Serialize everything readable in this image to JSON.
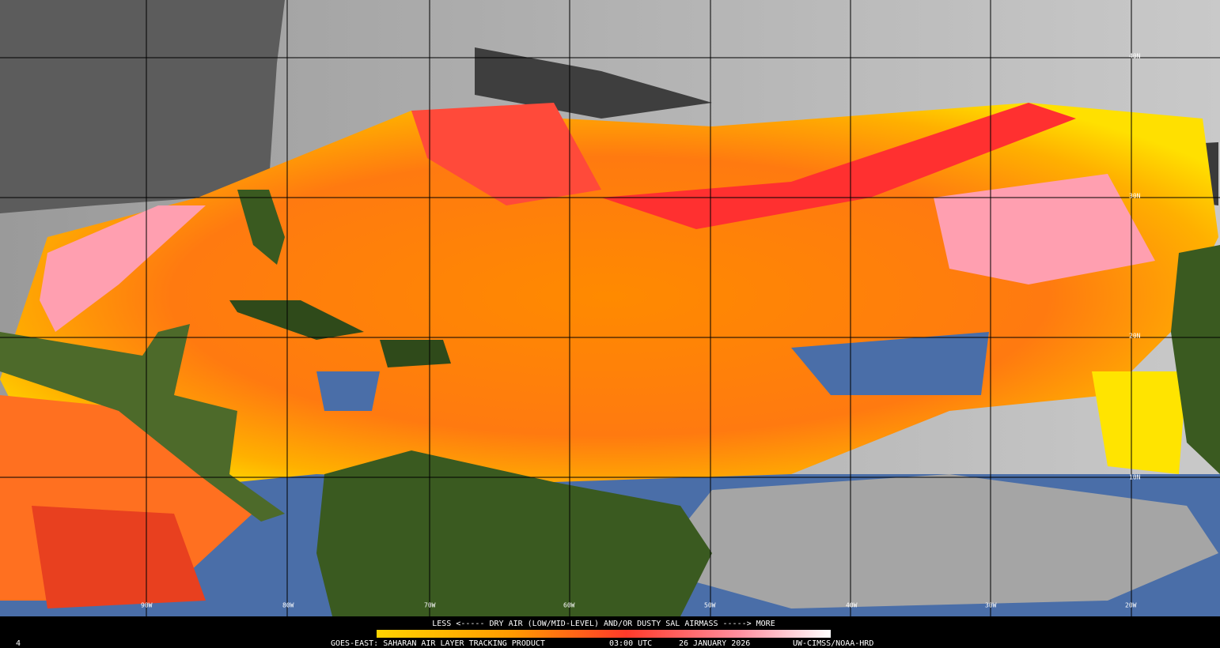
{
  "map": {
    "latitude_labels": [
      "40N",
      "30N",
      "20N",
      "10N"
    ],
    "longitude_labels": [
      "90W",
      "80W",
      "70W",
      "60W",
      "50W",
      "40W",
      "30W",
      "20W"
    ]
  },
  "legend": {
    "caption": "LESS <----- DRY AIR (LOW/MID-LEVEL) AND/OR DUSTY SAL AIRMASS -----> MORE"
  },
  "footer": {
    "frame": "4",
    "product": "GOES-EAST: SAHARAN AIR LAYER TRACKING PRODUCT",
    "time": "03:00 UTC",
    "date": "26 JANUARY 2026",
    "credit": "UW-CIMSS/NOAA-HRD"
  }
}
